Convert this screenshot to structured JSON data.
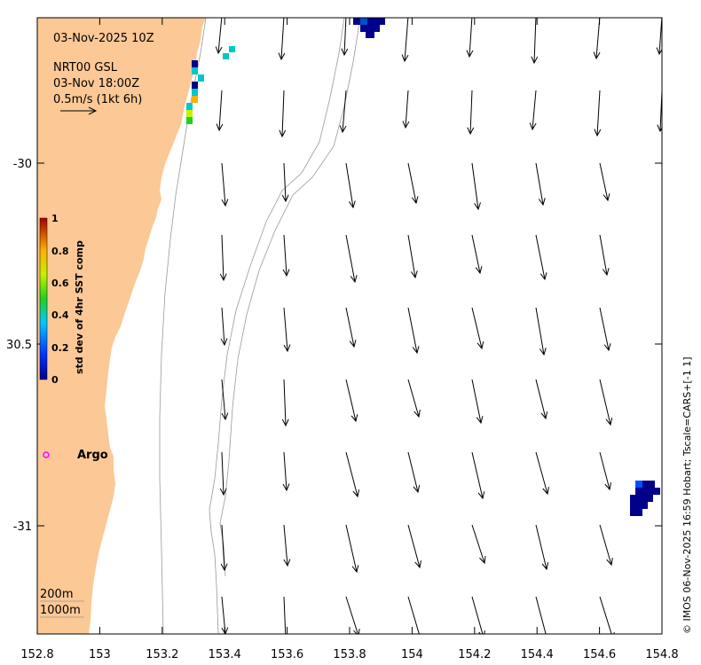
{
  "header": {
    "date_time": "03-Nov-2025 10Z",
    "product": "NRT00 GSL",
    "valid_time": "03-Nov 18:00Z",
    "vector_scale": "0.5m/s (1kt 6h)"
  },
  "axes": {
    "x_ticks": [
      "152.8",
      "153",
      "153.2",
      "153.4",
      "153.6",
      "153.8",
      "154",
      "154.2",
      "154.4",
      "154.6",
      "154.8"
    ],
    "y_ticks": [
      "-30",
      "30.5",
      "-31"
    ]
  },
  "colorbar": {
    "title": "std dev of 4hr SST comp",
    "ticks": [
      "0",
      "0.2",
      "0.4",
      "0.6",
      "0.8",
      "1"
    ]
  },
  "legend": {
    "argo_label": "Argo",
    "isobath_200": "200m",
    "isobath_1000": "1000m"
  },
  "credit": "© IMOS 06-Nov-2025 16:59 Hobart; Tscale=CARS+[-1 1]",
  "colors": {
    "land": "#fbc896",
    "argo_marker": "#ff00ff",
    "sst_low": "#00008b",
    "sst_mid": "#00c8c8"
  }
}
